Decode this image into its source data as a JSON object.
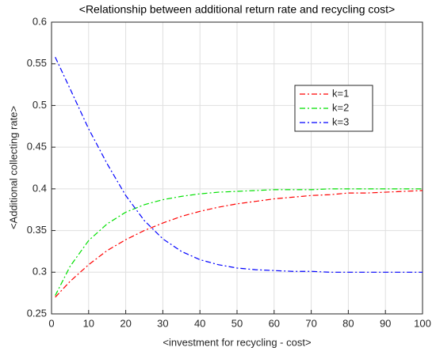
{
  "chart_data": {
    "type": "line",
    "title": "<Relationship between additional return rate and recycling cost>",
    "x_label": "<investment for recycling - cost>",
    "y_label": "<Additional collecting rate>",
    "x": [
      1,
      5,
      10,
      15,
      20,
      25,
      30,
      35,
      40,
      45,
      50,
      55,
      60,
      65,
      70,
      75,
      80,
      85,
      90,
      95,
      100
    ],
    "series": [
      {
        "name": "k=1",
        "color": "#ff0000",
        "values": [
          0.27,
          0.289,
          0.309,
          0.326,
          0.339,
          0.35,
          0.359,
          0.367,
          0.373,
          0.378,
          0.382,
          0.385,
          0.388,
          0.39,
          0.392,
          0.393,
          0.395,
          0.395,
          0.396,
          0.397,
          0.398
        ]
      },
      {
        "name": "k=2",
        "color": "#00e000",
        "values": [
          0.272,
          0.307,
          0.338,
          0.358,
          0.372,
          0.381,
          0.387,
          0.391,
          0.394,
          0.396,
          0.397,
          0.398,
          0.399,
          0.399,
          0.399,
          0.4,
          0.4,
          0.4,
          0.4,
          0.4,
          0.4
        ]
      },
      {
        "name": "k=3",
        "color": "#0000ff",
        "values": [
          0.558,
          0.52,
          0.472,
          0.43,
          0.392,
          0.362,
          0.34,
          0.325,
          0.315,
          0.309,
          0.305,
          0.303,
          0.302,
          0.301,
          0.301,
          0.3,
          0.3,
          0.3,
          0.3,
          0.3,
          0.3
        ]
      }
    ],
    "xlim": [
      0,
      100
    ],
    "xticks": [
      0,
      10,
      20,
      30,
      40,
      50,
      60,
      70,
      80,
      90,
      100
    ],
    "ylim": [
      0.25,
      0.6
    ],
    "yticks": [
      0.25,
      0.3,
      0.35,
      0.4,
      0.45,
      0.5,
      0.55,
      0.6
    ],
    "grid": true,
    "line_style": "dashdot",
    "legend": "upper right"
  }
}
